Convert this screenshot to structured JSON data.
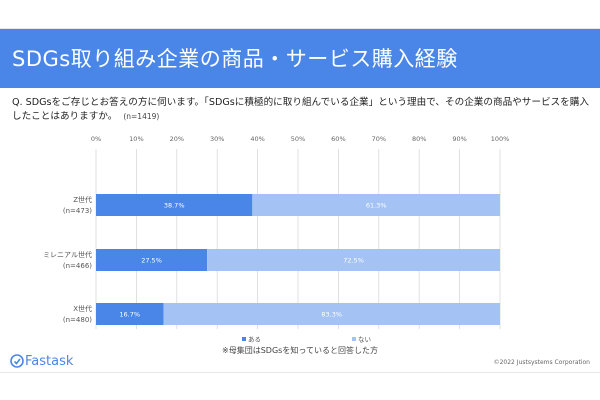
{
  "slide": {
    "title": "SDGs取り組み企業の商品・サービス購入経験",
    "question": "Q. SDGsをご存じとお答えの方に伺います。「SDGsに積極的に取り組んでいる企業」という理由で、その企業の商品やサービスを購入したことはありますか。",
    "sample_size": "(n=1419)",
    "footnote": "※母集団はSDGsを知っていると回答した方",
    "brand": "Fastask",
    "copyright": "©2022 Justsystems Corporation"
  },
  "chart_data": {
    "type": "bar",
    "orientation": "horizontal",
    "stacked": true,
    "percent": true,
    "xlim": [
      0,
      100
    ],
    "x_ticks": [
      "0%",
      "10%",
      "20%",
      "30%",
      "40%",
      "50%",
      "60%",
      "70%",
      "80%",
      "90%",
      "100%"
    ],
    "categories": [
      {
        "name": "Z世代",
        "n": "(n=473)"
      },
      {
        "name": "ミレニアル世代",
        "n": "(n=466)"
      },
      {
        "name": "X世代",
        "n": "(n=480)"
      }
    ],
    "series": [
      {
        "name": "ある",
        "color": "#4a86e8",
        "values": [
          38.7,
          27.5,
          16.7
        ],
        "labels": [
          "38.7%",
          "27.5%",
          "16.7%"
        ]
      },
      {
        "name": "ない",
        "color": "#a4c2f4",
        "values": [
          61.3,
          72.5,
          83.3
        ],
        "labels": [
          "61.3%",
          "72.5%",
          "83.3%"
        ]
      }
    ],
    "grid": true,
    "legend": "bottom"
  }
}
